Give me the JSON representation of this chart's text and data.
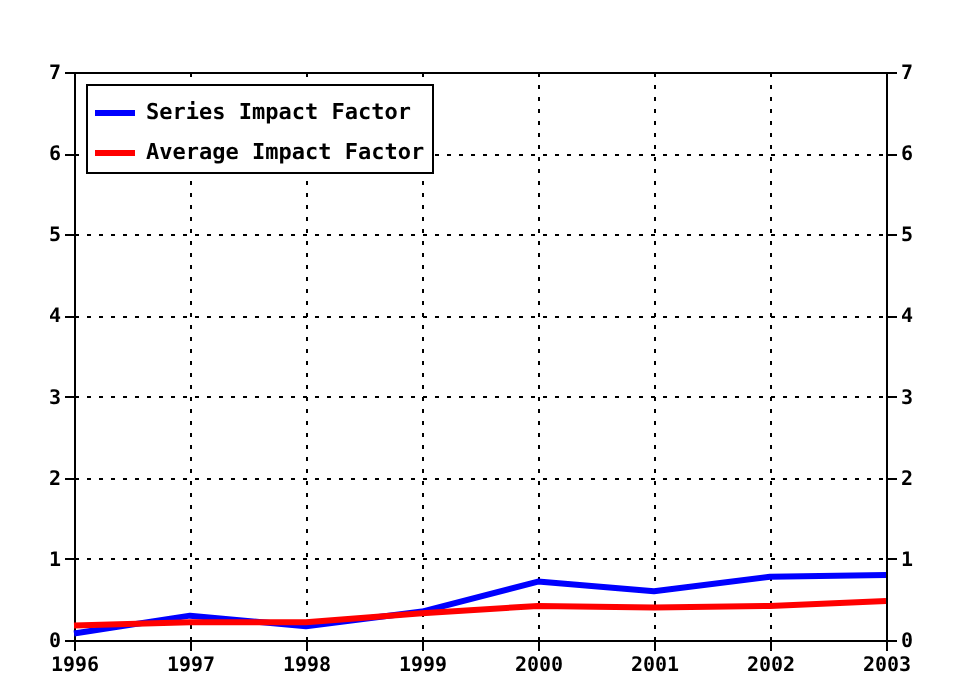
{
  "chart_data": {
    "type": "line",
    "x": [
      1996,
      1997,
      1998,
      1999,
      2000,
      2001,
      2002,
      2003
    ],
    "series": [
      {
        "name": "Series Impact Factor",
        "color": "#0000ff",
        "values": [
          0.08,
          0.3,
          0.17,
          0.35,
          0.72,
          0.6,
          0.78,
          0.8
        ]
      },
      {
        "name": "Average Impact Factor",
        "color": "#ff0000",
        "values": [
          0.18,
          0.22,
          0.22,
          0.33,
          0.42,
          0.4,
          0.42,
          0.48
        ]
      }
    ],
    "xlim": [
      1996,
      2003
    ],
    "xticks": [
      1996,
      1997,
      1998,
      1999,
      2000,
      2001,
      2002,
      2003
    ],
    "ylim": [
      0,
      7
    ],
    "yticks": [
      0,
      1,
      2,
      3,
      4,
      5,
      6,
      7
    ],
    "y2lim": [
      0,
      7
    ],
    "y2ticks": [
      0,
      1,
      2,
      3,
      4,
      5,
      6,
      7
    ],
    "grid": true,
    "legend": "top left",
    "line_style": "solid",
    "marker": "none"
  }
}
